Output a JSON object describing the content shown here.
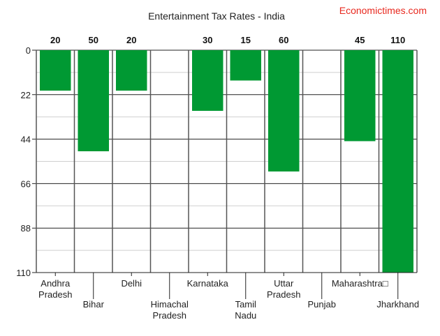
{
  "chart_data": {
    "type": "bar",
    "title": "Entertainment Tax Rates - India",
    "source": "Economictimes.com",
    "orientation": "downward",
    "categories": [
      "Andhra Pradesh",
      "Bihar",
      "Delhi",
      "Himachal Pradesh",
      "Karnataka",
      "Tamil Nadu",
      "Uttar Pradesh",
      "Punjab",
      "Maharashtra□",
      "Jharkhand"
    ],
    "values": [
      20,
      50,
      20,
      null,
      30,
      15,
      60,
      null,
      45,
      110
    ],
    "data_labels": [
      "20",
      "50",
      "20",
      "",
      "30",
      "15",
      "60",
      "",
      "45",
      "110"
    ],
    "ylim": [
      0,
      110
    ],
    "yticks": [
      0,
      22,
      44,
      66,
      88,
      110
    ],
    "ytick_labels": [
      "0",
      "22",
      "44",
      "66",
      "88",
      "110"
    ],
    "minor_yticks": [
      11,
      33,
      55,
      77,
      99
    ],
    "xlabel": "",
    "ylabel": "",
    "grid": true,
    "bar_color": "#009933",
    "legend": "none"
  }
}
